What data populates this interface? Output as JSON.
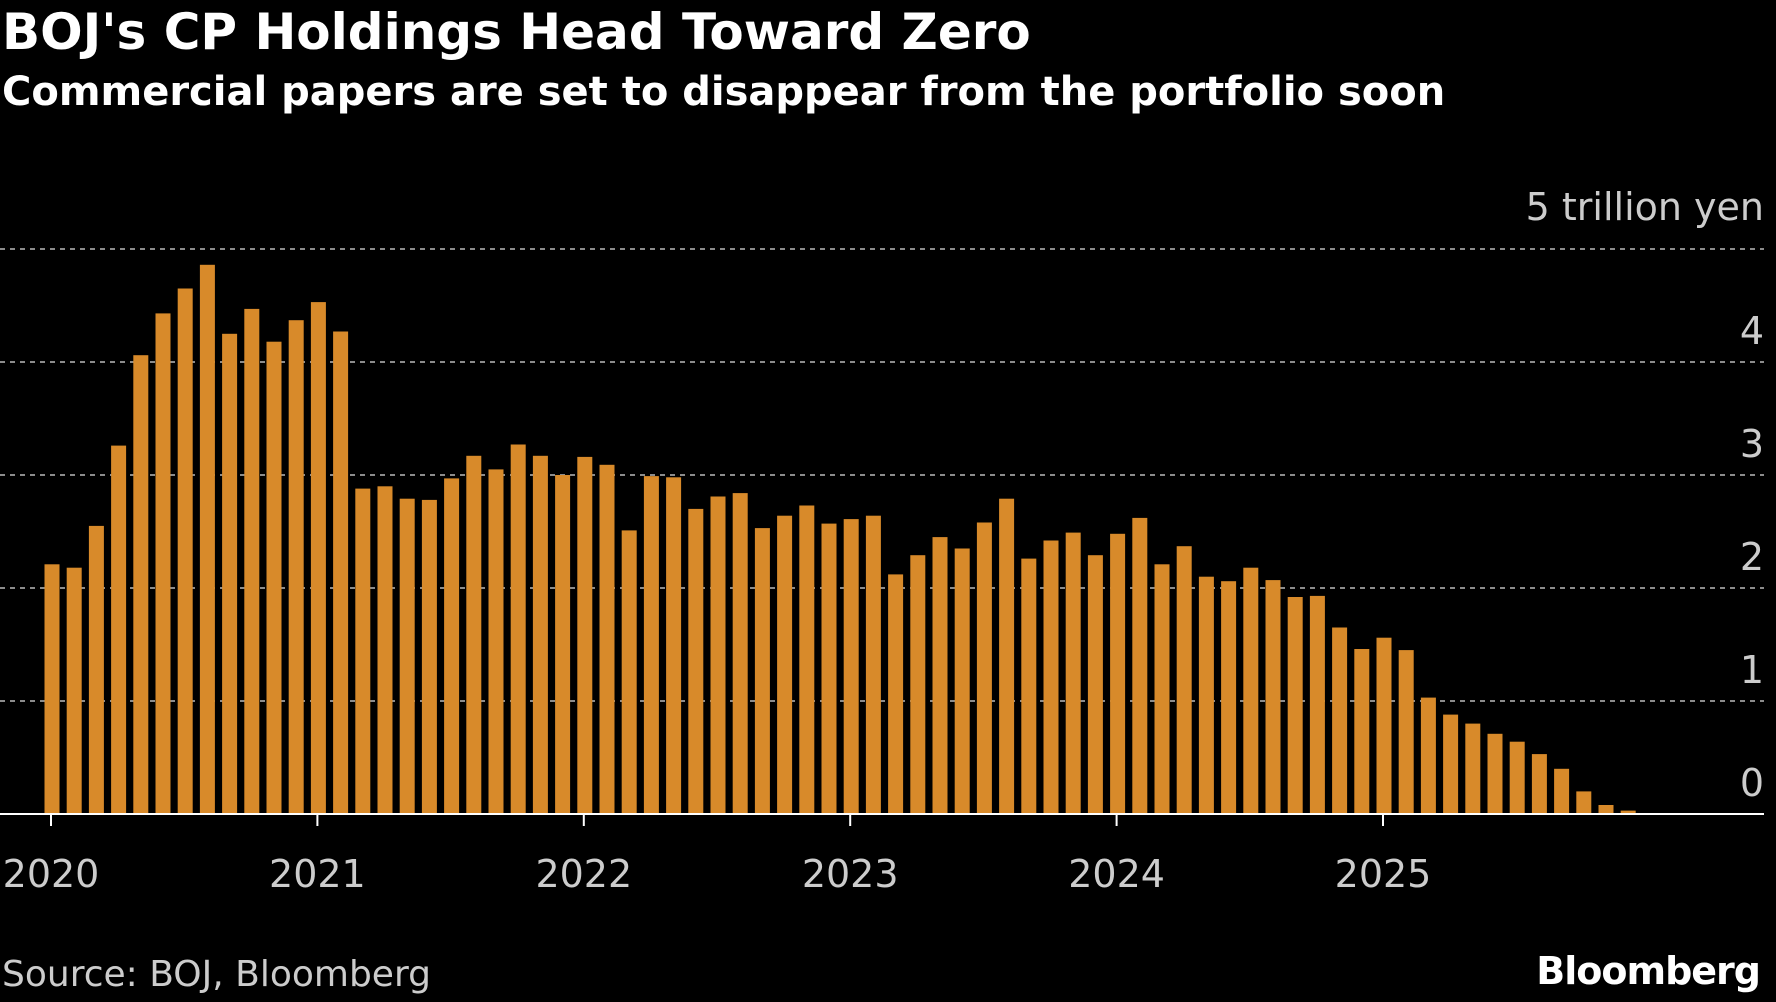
{
  "title": "BOJ's CP Holdings Head Toward Zero",
  "subtitle": "Commercial papers are set to disappear from the portfolio soon",
  "source": "Source: BOJ, Bloomberg",
  "brand": "Bloomberg",
  "colors": {
    "bar": "#d88a2a",
    "background": "#000000",
    "grid": "#8c8c8c",
    "axis": "#ffffff",
    "text": "#ffffff",
    "muted_text": "#cccccc"
  },
  "chart_data": {
    "type": "bar",
    "title": "BOJ's CP Holdings Head Toward Zero",
    "subtitle": "Commercial papers are set to disappear from the portfolio soon",
    "xlabel": "",
    "ylabel": "",
    "unit_label": "5 trillion yen",
    "ylim": [
      0,
      5
    ],
    "yticks": [
      0,
      1,
      2,
      3,
      4
    ],
    "x_tick_labels": [
      "2020",
      "2021",
      "2022",
      "2023",
      "2024",
      "2025"
    ],
    "x_tick_indices": [
      0,
      12,
      24,
      36,
      48,
      60
    ],
    "grid": true,
    "start_month": "2020-01",
    "frequency": "monthly",
    "series": [
      {
        "name": "CP holdings",
        "values": [
          2.21,
          2.18,
          2.55,
          3.26,
          4.06,
          4.43,
          4.65,
          4.86,
          4.25,
          4.47,
          4.18,
          4.37,
          4.53,
          4.27,
          2.88,
          2.9,
          2.79,
          2.78,
          2.97,
          3.17,
          3.05,
          3.27,
          3.17,
          3.0,
          3.16,
          3.09,
          2.51,
          2.99,
          2.98,
          2.7,
          2.81,
          2.84,
          2.53,
          2.64,
          2.73,
          2.57,
          2.61,
          2.64,
          2.12,
          2.29,
          2.45,
          2.35,
          2.58,
          2.79,
          2.26,
          2.42,
          2.49,
          2.29,
          2.48,
          2.62,
          2.21,
          2.37,
          2.1,
          2.06,
          2.18,
          2.07,
          1.92,
          1.93,
          1.65,
          1.46,
          1.56,
          1.45,
          1.03,
          0.88,
          0.8,
          0.71,
          0.64,
          0.53,
          0.4,
          0.2,
          0.08,
          0.03
        ]
      }
    ]
  }
}
